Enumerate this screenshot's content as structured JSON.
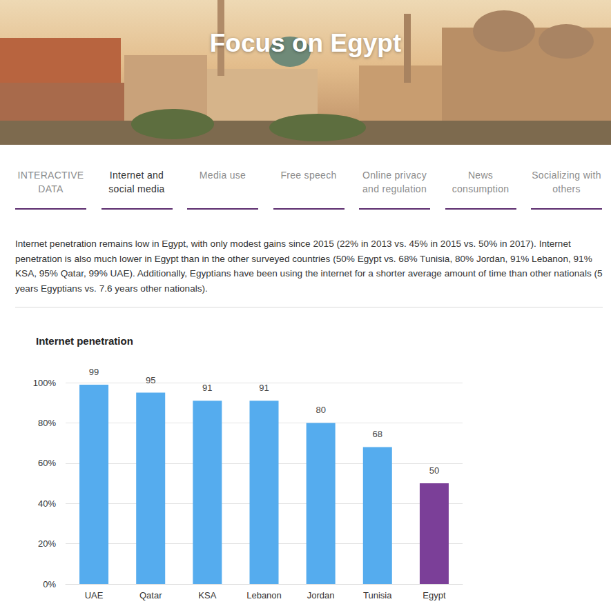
{
  "header": {
    "title": "Focus on Egypt"
  },
  "tabs": [
    {
      "label": "INTERACTIVE DATA",
      "active": false
    },
    {
      "label": "Internet and social media",
      "active": true
    },
    {
      "label": "Media use",
      "active": false
    },
    {
      "label": "Free speech",
      "active": false
    },
    {
      "label": "Online privacy and regulation",
      "active": false
    },
    {
      "label": "News consumption",
      "active": false
    },
    {
      "label": "Socializing with others",
      "active": false
    }
  ],
  "text": "Internet penetration remains low in Egypt, with only modest gains since 2015 (22% in 2013 vs. 45% in 2015 vs. 50% in 2017). Internet penetration is also much lower in Egypt than in the other surveyed countries (50% Egypt vs. 68% Tunisia, 80% Jordan, 91% Lebanon, 91% KSA, 95% Qatar, 99% UAE). Additionally, Egyptians have been using the internet for a shorter average amount of time than other nationals (5 years Egyptians vs. 7.6 years other nationals).",
  "chart_data": {
    "type": "bar",
    "title": "Internet penetration",
    "categories": [
      "UAE",
      "Qatar",
      "KSA",
      "Lebanon",
      "Jordan",
      "Tunisia",
      "Egypt"
    ],
    "values": [
      99,
      95,
      91,
      91,
      80,
      68,
      50
    ],
    "colors": [
      "#55acee",
      "#55acee",
      "#55acee",
      "#55acee",
      "#55acee",
      "#55acee",
      "#7b3f98"
    ],
    "ylim": [
      0,
      100
    ],
    "yticks": [
      {
        "value": 0,
        "label": "0%"
      },
      {
        "value": 20,
        "label": "20%"
      },
      {
        "value": 40,
        "label": "40%"
      },
      {
        "value": 60,
        "label": "60%"
      },
      {
        "value": 80,
        "label": "80%"
      },
      {
        "value": 100,
        "label": "100%"
      }
    ],
    "grid": true,
    "data_labels": true
  }
}
